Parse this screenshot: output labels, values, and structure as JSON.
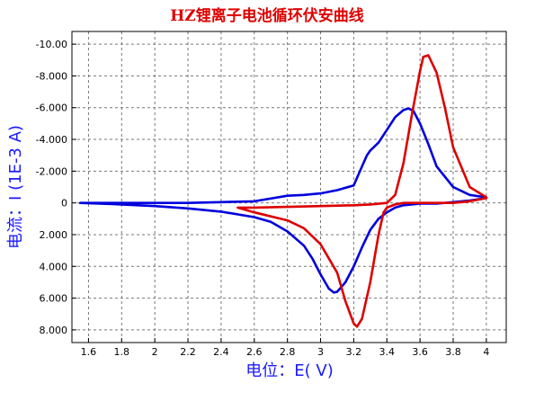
{
  "chart_data": {
    "type": "line",
    "title": "HZ锂离子电池循环伏安曲线",
    "xlabel": "电位：E( V)",
    "ylabel": "电流：I (1E-3 A)",
    "xlim": [
      1.5,
      4.12
    ],
    "ylim": [
      -10.8,
      8.8
    ],
    "y_inverted": true,
    "grid": true,
    "x_ticks": [
      1.6,
      1.8,
      2.0,
      2.2,
      2.4,
      2.6,
      2.8,
      3.0,
      3.2,
      3.4,
      3.6,
      3.8,
      4.0
    ],
    "x_tick_labels": [
      "1.6",
      "1.8",
      "2",
      "2.2",
      "2.4",
      "2.6",
      "2.8",
      "3",
      "3.2",
      "3.4",
      "3.6",
      "3.8",
      "4"
    ],
    "y_ticks": [
      -10,
      -8,
      -6,
      -4,
      -2,
      0,
      2,
      4,
      6,
      8
    ],
    "y_tick_labels": [
      "-10.00",
      "-8.000",
      "-6.000",
      "-4.000",
      "-2.000",
      "0",
      "2.000",
      "4.000",
      "6.000",
      "8.000"
    ],
    "series": [
      {
        "color": "#0000dd",
        "x": [
          1.55,
          1.8,
          2.0,
          2.2,
          2.4,
          2.6,
          2.8,
          2.9,
          3.0,
          3.1,
          3.2,
          3.25,
          3.28,
          3.3,
          3.35,
          3.4,
          3.45,
          3.5,
          3.53,
          3.56,
          3.6,
          3.65,
          3.7,
          3.8,
          3.9,
          4.0,
          4.0,
          3.9,
          3.8,
          3.7,
          3.6,
          3.5,
          3.45,
          3.4,
          3.35,
          3.3,
          3.25,
          3.2,
          3.15,
          3.1,
          3.08,
          3.05,
          3.0,
          2.95,
          2.9,
          2.8,
          2.7,
          2.6,
          2.4,
          2.2,
          2.0,
          1.8,
          1.55
        ],
        "y": [
          0,
          0,
          0,
          0,
          -0.05,
          -0.1,
          -0.45,
          -0.5,
          -0.6,
          -0.8,
          -1.1,
          -2.3,
          -3.0,
          -3.3,
          -3.8,
          -4.6,
          -5.4,
          -5.85,
          -5.95,
          -5.8,
          -5.0,
          -3.7,
          -2.3,
          -1.0,
          -0.5,
          -0.35,
          -0.3,
          -0.15,
          -0.05,
          0.05,
          0.05,
          0.15,
          0.3,
          0.6,
          1.0,
          1.7,
          2.8,
          4.0,
          5.0,
          5.6,
          5.65,
          5.4,
          4.5,
          3.5,
          2.7,
          1.8,
          1.2,
          0.9,
          0.55,
          0.35,
          0.2,
          0.1,
          0
        ]
      },
      {
        "color": "#dd0000",
        "x": [
          2.5,
          2.6,
          2.8,
          3.0,
          3.2,
          3.3,
          3.4,
          3.45,
          3.5,
          3.55,
          3.6,
          3.62,
          3.65,
          3.7,
          3.75,
          3.8,
          3.9,
          4.0,
          4.0,
          3.9,
          3.8,
          3.7,
          3.6,
          3.5,
          3.45,
          3.4,
          3.38,
          3.35,
          3.3,
          3.25,
          3.22,
          3.2,
          3.15,
          3.1,
          3.0,
          2.9,
          2.8,
          2.6,
          2.5
        ],
        "y": [
          0.3,
          0.3,
          0.25,
          0.2,
          0.15,
          0.1,
          0,
          -0.5,
          -2.5,
          -5.5,
          -8.3,
          -9.2,
          -9.3,
          -8.2,
          -6.0,
          -3.5,
          -1.0,
          -0.35,
          -0.3,
          -0.1,
          0,
          0,
          0,
          0,
          0.1,
          0.3,
          0.6,
          2.0,
          5.0,
          7.3,
          7.8,
          7.6,
          6.2,
          4.4,
          2.6,
          1.6,
          1.1,
          0.6,
          0.3
        ]
      }
    ]
  }
}
